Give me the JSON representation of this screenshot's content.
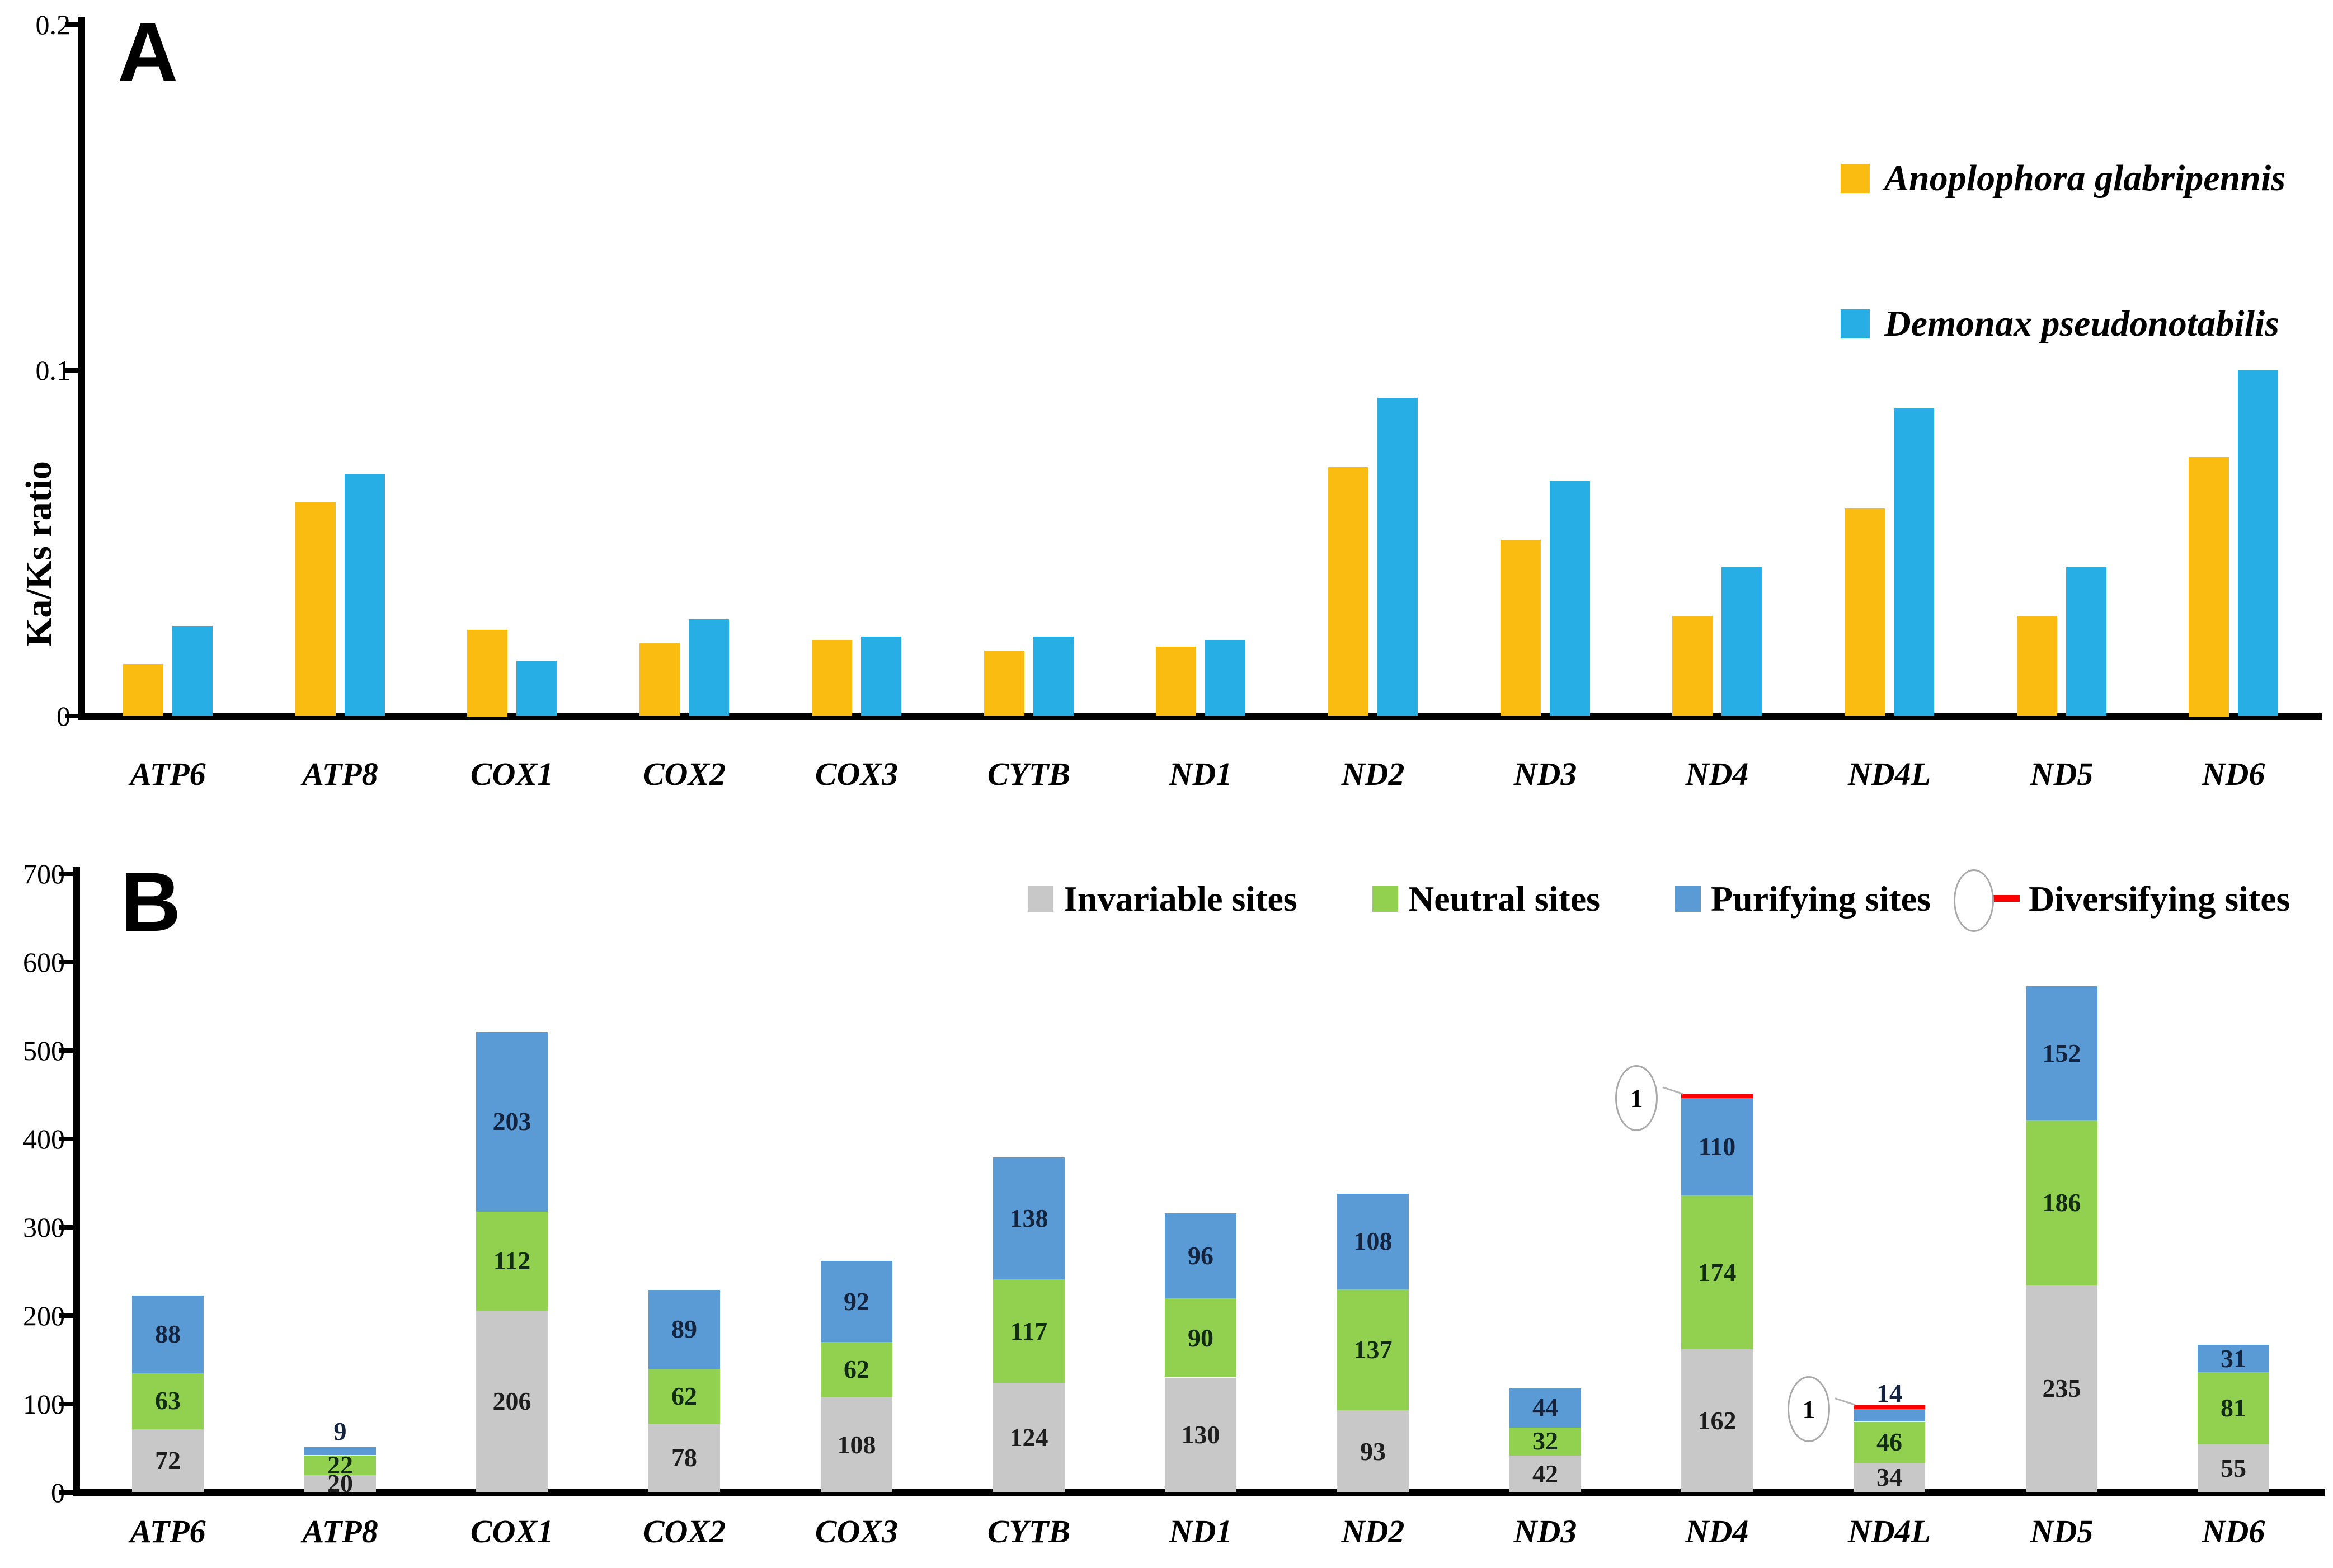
{
  "panelA": {
    "label": "A",
    "ylabel": "Ka/Ks ratio",
    "ytick_labels": [
      "0",
      "0.1",
      "0.2"
    ]
  },
  "panelB": {
    "label": "B",
    "ytick_labels": [
      "0",
      "100",
      "200",
      "300",
      "400",
      "500",
      "600",
      "700"
    ]
  },
  "colors": {
    "series_a1": "#FBBC12",
    "series_a2": "#27AEE4",
    "invariable": "#C8C8C8",
    "neutral": "#92D050",
    "purifying": "#5B9BD5",
    "diversifying": "#FF0000"
  },
  "chart_data": [
    {
      "type": "bar",
      "panel": "A",
      "title": "",
      "xlabel": "",
      "ylabel": "Ka/Ks ratio",
      "ylim": [
        0,
        0.2
      ],
      "ytick_values": [
        0,
        0.1,
        0.2
      ],
      "grid": false,
      "legend_position": "top-right",
      "categories": [
        "ATP6",
        "ATP8",
        "COX1",
        "COX2",
        "COX3",
        "CYTB",
        "ND1",
        "ND2",
        "ND3",
        "ND4",
        "ND4L",
        "ND5",
        "ND6"
      ],
      "series": [
        {
          "name": "Anoplophora glabripennis",
          "color": "#FBBC12",
          "values": [
            0.015,
            0.062,
            0.025,
            0.021,
            0.022,
            0.019,
            0.02,
            0.072,
            0.051,
            0.029,
            0.06,
            0.029,
            0.075
          ]
        },
        {
          "name": "Demonax pseudonotabilis",
          "color": "#27AEE4",
          "values": [
            0.026,
            0.07,
            0.016,
            0.028,
            0.023,
            0.023,
            0.022,
            0.092,
            0.068,
            0.043,
            0.089,
            0.043,
            0.1
          ]
        }
      ]
    },
    {
      "type": "stacked-bar",
      "panel": "B",
      "title": "",
      "xlabel": "",
      "ylabel": "",
      "ylim": [
        0,
        700
      ],
      "ytick_values": [
        0,
        100,
        200,
        300,
        400,
        500,
        600,
        700
      ],
      "grid": false,
      "legend_position": "top",
      "categories": [
        "ATP6",
        "ATP8",
        "COX1",
        "COX2",
        "COX3",
        "CYTB",
        "ND1",
        "ND2",
        "ND3",
        "ND4",
        "ND4L",
        "ND5",
        "ND6"
      ],
      "series": [
        {
          "name": "Invariable sites",
          "color": "#C8C8C8",
          "label_color": "#1d1d1d",
          "values": [
            72,
            20,
            206,
            78,
            108,
            124,
            130,
            93,
            42,
            162,
            34,
            235,
            55
          ]
        },
        {
          "name": "Neutral sites",
          "color": "#92D050",
          "label_color": "#122c12",
          "values": [
            63,
            22,
            112,
            62,
            62,
            117,
            90,
            137,
            32,
            174,
            46,
            186,
            81
          ]
        },
        {
          "name": "Purifying sites",
          "color": "#5B9BD5",
          "label_color": "#14243f",
          "values": [
            88,
            9,
            203,
            89,
            92,
            138,
            96,
            108,
            44,
            110,
            14,
            152,
            31
          ]
        },
        {
          "name": "Diversifying sites",
          "color": "#FF0000",
          "label_color": "#000000",
          "values": [
            0,
            0,
            0,
            0,
            0,
            0,
            0,
            0,
            0,
            1,
            1,
            0,
            0
          ]
        }
      ]
    }
  ]
}
